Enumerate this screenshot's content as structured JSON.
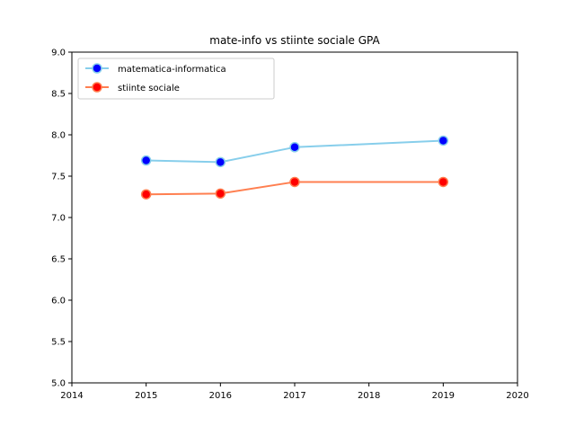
{
  "chart_data": {
    "type": "line",
    "title": "mate-info vs stiinte sociale GPA",
    "xlabel": "",
    "ylabel": "",
    "xlim": [
      2014,
      2020
    ],
    "ylim": [
      5.0,
      9.0
    ],
    "x_ticks": [
      "2014",
      "2015",
      "2016",
      "2017",
      "2018",
      "2019",
      "2020"
    ],
    "y_ticks": [
      "5.0",
      "5.5",
      "6.0",
      "6.5",
      "7.0",
      "7.5",
      "8.0",
      "8.5",
      "9.0"
    ],
    "x": [
      2015,
      2016,
      2017,
      2019
    ],
    "grid": false,
    "legend_position": "top-left",
    "series": [
      {
        "name": "matematica-informatica",
        "values": [
          7.69,
          7.67,
          7.85,
          7.93
        ],
        "line_color": "#87ceeb",
        "marker_color": "#0000ff"
      },
      {
        "name": "stiinte sociale",
        "values": [
          7.28,
          7.29,
          7.43,
          7.43
        ],
        "line_color": "#ff7f50",
        "marker_color": "#ff0000"
      }
    ]
  }
}
